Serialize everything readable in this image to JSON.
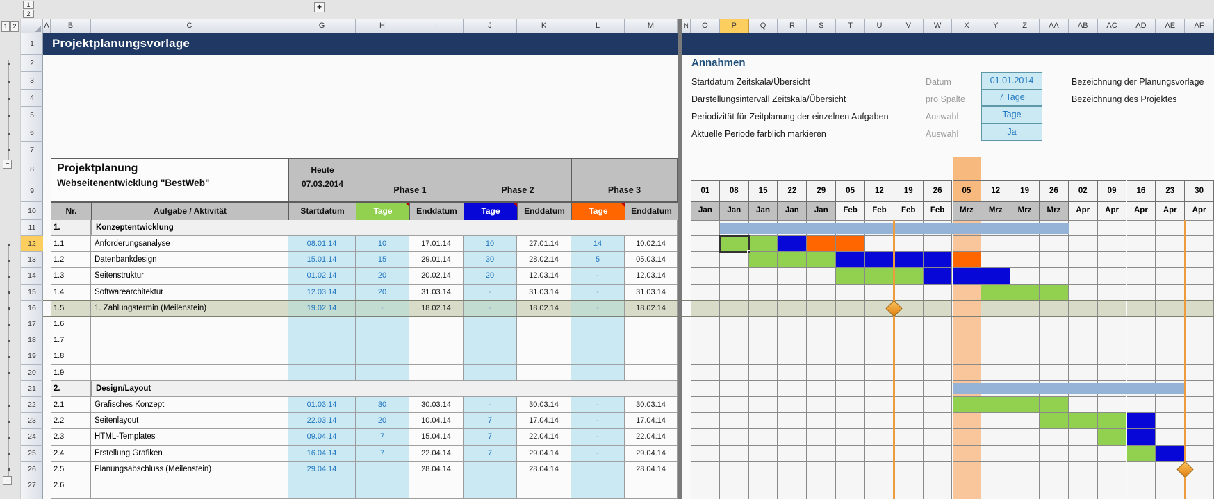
{
  "window": {
    "outline_levels": [
      "1",
      "2"
    ],
    "expand_button": "+",
    "left_column_letters": [
      "A",
      "B",
      "C",
      "G",
      "H",
      "I",
      "J",
      "K",
      "L",
      "M"
    ],
    "right_column_letters": [
      "N",
      "O",
      "P",
      "Q",
      "R",
      "S",
      "T",
      "U",
      "V",
      "W",
      "X",
      "Y",
      "Z",
      "AA",
      "AB",
      "AC",
      "AD",
      "AE",
      "AF"
    ],
    "row_numbers": [
      "1",
      "2",
      "3",
      "4",
      "5",
      "6",
      "7",
      "8",
      "9",
      "10",
      "11",
      "12",
      "13",
      "14",
      "15",
      "16",
      "17",
      "18",
      "19",
      "20",
      "21",
      "22",
      "23",
      "24",
      "25",
      "26",
      "27"
    ],
    "selection": {
      "column": "P",
      "row": 12,
      "gantt_col_index": 1
    }
  },
  "title_bar": {
    "text": "Projektplanungsvorlage"
  },
  "assumptions": {
    "heading": "Annahmen",
    "rows": [
      {
        "label": "Startdatum Zeitskala/Übersicht",
        "key": "Datum",
        "value": "01.01.2014"
      },
      {
        "label": "Darstellungsintervall Zeitskala/Übersicht",
        "key": "pro Spalte",
        "value": "7 Tage"
      },
      {
        "label": "Periodizität für Zeitplanung der einzelnen Aufgaben",
        "key": "Auswahl",
        "value": "Tage"
      },
      {
        "label": "Aktuelle Periode farblich markieren",
        "key": "Auswahl",
        "value": "Ja"
      }
    ],
    "side_labels": [
      "Bezeichnung der Planungsvorlage",
      "Bezeichnung des Projektes"
    ]
  },
  "plan": {
    "title": "Projektplanung",
    "subtitle": "Webseitenentwicklung \"BestWeb\"",
    "today_label": "Heute",
    "today_date": "07.03.2014",
    "phases": [
      "Phase 1",
      "Phase 2",
      "Phase 3"
    ],
    "columns": {
      "nr": "Nr.",
      "task": "Aufgabe / Aktivität",
      "start": "Startdatum",
      "tage": "Tage",
      "end": "Enddatum"
    },
    "rows": [
      {
        "sheet_row": 11,
        "nr": "1.",
        "task": "Konzeptentwicklung",
        "section": true
      },
      {
        "sheet_row": 12,
        "nr": "1.1",
        "task": "Anforderungsanalyse",
        "start": "08.01.14",
        "t1": "10",
        "e1": "17.01.14",
        "t2": "10",
        "e2": "27.01.14",
        "t3": "14",
        "e3": "10.02.14"
      },
      {
        "sheet_row": 13,
        "nr": "1.2",
        "task": "Datenbankdesign",
        "start": "15.01.14",
        "t1": "15",
        "e1": "29.01.14",
        "t2": "30",
        "e2": "28.02.14",
        "t3": "5",
        "e3": "05.03.14"
      },
      {
        "sheet_row": 14,
        "nr": "1.3",
        "task": "Seitenstruktur",
        "start": "01.02.14",
        "t1": "20",
        "e1": "20.02.14",
        "t2": "20",
        "e2": "12.03.14",
        "t3": "-",
        "e3": "12.03.14"
      },
      {
        "sheet_row": 15,
        "nr": "1.4",
        "task": "Softwarearchitektur",
        "start": "12.03.14",
        "t1": "20",
        "e1": "31.03.14",
        "t2": "-",
        "e2": "31.03.14",
        "t3": "-",
        "e3": "31.03.14"
      },
      {
        "sheet_row": 16,
        "nr": "1.5",
        "task": "1. Zahlungstermin (Meilenstein)",
        "start": "19.02.14",
        "t1": "-",
        "e1": "18.02.14",
        "t2": "-",
        "e2": "18.02.14",
        "t3": "-",
        "e3": "18.02.14",
        "highlight": true
      },
      {
        "sheet_row": 17,
        "nr": "1.6"
      },
      {
        "sheet_row": 18,
        "nr": "1.7"
      },
      {
        "sheet_row": 19,
        "nr": "1.8"
      },
      {
        "sheet_row": 20,
        "nr": "1.9"
      },
      {
        "sheet_row": 21,
        "nr": "2.",
        "task": "Design/Layout",
        "section": true
      },
      {
        "sheet_row": 22,
        "nr": "2.1",
        "task": "Grafisches Konzept",
        "start": "01.03.14",
        "t1": "30",
        "e1": "30.03.14",
        "t2": "-",
        "e2": "30.03.14",
        "t3": "-",
        "e3": "30.03.14"
      },
      {
        "sheet_row": 23,
        "nr": "2.2",
        "task": "Seitenlayout",
        "start": "22.03.14",
        "t1": "20",
        "e1": "10.04.14",
        "t2": "7",
        "e2": "17.04.14",
        "t3": "-",
        "e3": "17.04.14"
      },
      {
        "sheet_row": 24,
        "nr": "2.3",
        "task": "HTML-Templates",
        "start": "09.04.14",
        "t1": "7",
        "e1": "15.04.14",
        "t2": "7",
        "e2": "22.04.14",
        "t3": "-",
        "e3": "22.04.14"
      },
      {
        "sheet_row": 25,
        "nr": "2.4",
        "task": "Erstellung Grafiken",
        "start": "16.04.14",
        "t1": "7",
        "e1": "22.04.14",
        "t2": "7",
        "e2": "29.04.14",
        "t3": "-",
        "e3": "29.04.14"
      },
      {
        "sheet_row": 26,
        "nr": "2.5",
        "task": "Planungsabschluss (Meilenstein)",
        "start": "29.04.14",
        "t1": "",
        "e1": "28.04.14",
        "t2": "",
        "e2": "28.04.14",
        "t3": "",
        "e3": "28.04.14"
      },
      {
        "sheet_row": 27,
        "nr": "2.6"
      }
    ]
  },
  "gantt": {
    "days": [
      "01",
      "08",
      "15",
      "22",
      "29",
      "05",
      "12",
      "19",
      "26",
      "05",
      "12",
      "19",
      "26",
      "02",
      "09",
      "16",
      "23",
      "30"
    ],
    "months": [
      "Jan",
      "Jan",
      "Jan",
      "Jan",
      "Jan",
      "Feb",
      "Feb",
      "Feb",
      "Feb",
      "Mrz",
      "Mrz",
      "Mrz",
      "Mrz",
      "Apr",
      "Apr",
      "Apr",
      "Apr",
      "Apr"
    ],
    "current_period_index": 9,
    "bars": [
      {
        "row": 12,
        "segments": [
          {
            "from": 1,
            "to": 2,
            "phase": "p1"
          },
          {
            "from": 3,
            "to": 3,
            "phase": "p2"
          },
          {
            "from": 4,
            "to": 5,
            "phase": "p3"
          }
        ]
      },
      {
        "row": 13,
        "segments": [
          {
            "from": 2,
            "to": 4,
            "phase": "p1"
          },
          {
            "from": 5,
            "to": 8,
            "phase": "p2"
          },
          {
            "from": 9,
            "to": 9,
            "phase": "p3"
          }
        ]
      },
      {
        "row": 14,
        "segments": [
          {
            "from": 5,
            "to": 7,
            "phase": "p1"
          },
          {
            "from": 8,
            "to": 10,
            "phase": "p2"
          }
        ]
      },
      {
        "row": 15,
        "segments": [
          {
            "from": 10,
            "to": 12,
            "phase": "p1"
          }
        ]
      },
      {
        "row": 22,
        "segments": [
          {
            "from": 9,
            "to": 12,
            "phase": "p1"
          }
        ]
      },
      {
        "row": 23,
        "segments": [
          {
            "from": 12,
            "to": 14,
            "phase": "p1"
          },
          {
            "from": 15,
            "to": 15,
            "phase": "p2"
          }
        ]
      },
      {
        "row": 24,
        "segments": [
          {
            "from": 14,
            "to": 14,
            "phase": "p1"
          },
          {
            "from": 15,
            "to": 15,
            "phase": "p2"
          }
        ]
      },
      {
        "row": 25,
        "segments": [
          {
            "from": 15,
            "to": 15,
            "phase": "p1"
          },
          {
            "from": 16,
            "to": 16,
            "phase": "p2"
          }
        ]
      }
    ],
    "summaries": [
      {
        "row": 11,
        "from": 1,
        "to": 12
      },
      {
        "row": 21,
        "from": 9,
        "to": 16
      }
    ],
    "milestones": [
      {
        "row": 16,
        "edge": 7
      },
      {
        "row": 26,
        "edge": 17
      }
    ]
  },
  "colors": {
    "phase1": "#92D050",
    "phase2": "#0707D8",
    "phase3": "#FF6600",
    "summary": "#95B3D7",
    "current": "#F9C69C",
    "current_header": "#F8B97E",
    "row_highlight": "#D9DBC9",
    "row_highlight_input": "#C3DCD2",
    "input": "#CBE9F2",
    "navy": "#1F3864",
    "header_gray": "#C0C0C0",
    "month_gray": "#C0C0C0",
    "month_light": "#F4F4F4",
    "gantt_bg": "#F6F6F6",
    "cell_bg": "#FBFBFB",
    "section_bg": "#F0F0F0",
    "blue_text": "#2076C0",
    "dash_text": "#86A9C6"
  }
}
